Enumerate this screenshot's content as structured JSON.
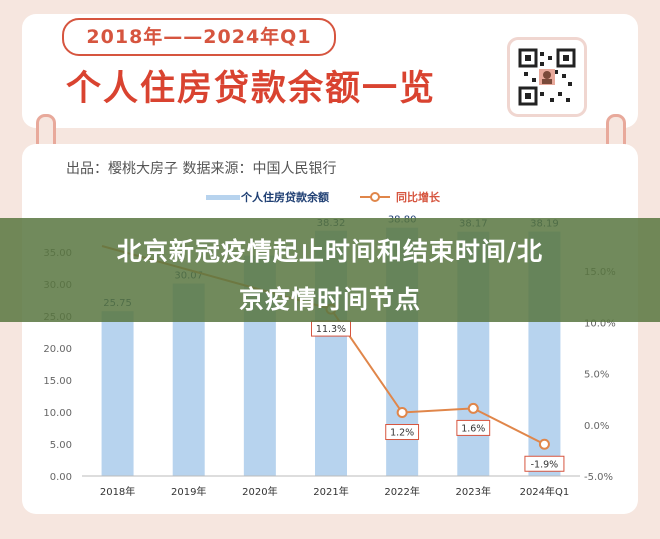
{
  "header": {
    "range_label": "2018年——2024年Q1",
    "title": "个人住房贷款余额一览",
    "qr_icon": "qr-code-icon"
  },
  "source_line": "出品：樱桃大房子   数据来源：中国人民银行",
  "overlay": {
    "line1": "北京新冠疫情起止时间和结束时间/北",
    "line2": "京疫情时间节点"
  },
  "colors": {
    "bar": "#b7d3ee",
    "line": "#e0864a",
    "title_red": "#d94330",
    "banner": "#587640"
  },
  "chart_data": {
    "type": "bar",
    "categories": [
      "2018年",
      "2019年",
      "2020年",
      "2021年",
      "2022年",
      "2023年",
      "2024年Q1"
    ],
    "series": [
      {
        "name": "个人住房贷款余额",
        "type": "bar",
        "values": [
          25.75,
          30.07,
          34.44,
          38.32,
          38.8,
          38.17,
          38.19
        ]
      },
      {
        "name": "同比增长",
        "type": "line",
        "values": [
          null,
          null,
          null,
          11.3,
          1.2,
          1.6,
          -1.9
        ]
      }
    ],
    "bar_labels": [
      "25.75",
      "30.07",
      "",
      "38.32",
      "38.80",
      "38.17",
      "38.19"
    ],
    "line_labels": [
      "",
      "",
      "",
      "11.3%",
      "1.2%",
      "1.6%",
      "-1.9%"
    ],
    "y_left": {
      "ticks": [
        "0.00",
        "5.00",
        "10.00",
        "15.00",
        "20.00",
        "25.00",
        "30.00",
        "35.00"
      ],
      "ylim": [
        0,
        40
      ]
    },
    "y_right": {
      "ticks": [
        "-5.0%",
        "0.0%",
        "5.0%",
        "10.0%",
        "15.0%"
      ],
      "ylim": [
        -5,
        20
      ]
    },
    "grid": false,
    "legend": "top"
  }
}
